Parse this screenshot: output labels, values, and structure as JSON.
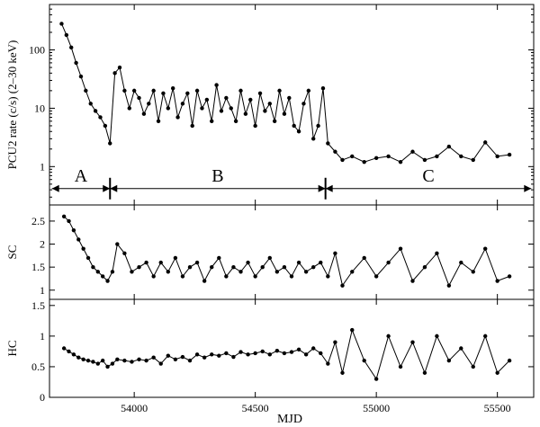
{
  "chart_data": {
    "type": "line",
    "xlabel": "MJD",
    "x_ticks": [
      54000,
      54500,
      55000,
      55500
    ],
    "xlim": [
      3650,
      5650
    ],
    "x_offset_note": "",
    "panels": [
      {
        "id": "rate",
        "ylabel": "PCU2 rate (c/s) (2–30 keV)",
        "scale": "log",
        "ylim": [
          0.22,
          600
        ],
        "y_ticks": [
          1,
          10,
          100
        ],
        "y_tick_labels": [
          "1",
          "10",
          "100"
        ],
        "series": [
          {
            "x": [
              53700,
              53720,
              53740,
              53760,
              53780,
              53800,
              53820,
              53840,
              53860,
              53880,
              53900,
              53920,
              53940,
              53960,
              53980,
              54000,
              54020,
              54040,
              54060,
              54080,
              54100,
              54120,
              54140,
              54160,
              54180,
              54200,
              54220,
              54240,
              54260,
              54280,
              54300,
              54320,
              54340,
              54360,
              54380,
              54400,
              54420,
              54440,
              54460,
              54480,
              54500,
              54520,
              54540,
              54560,
              54580,
              54600,
              54620,
              54640,
              54660,
              54680,
              54700,
              54720,
              54740,
              54760,
              54780,
              54800,
              54830,
              54860,
              54900,
              54950,
              55000,
              55050,
              55100,
              55150,
              55200,
              55250,
              55300,
              55350,
              55400,
              55450,
              55500,
              55550
            ],
            "y": [
              280,
              180,
              110,
              60,
              35,
              20,
              12,
              9,
              7,
              5,
              2.5,
              40,
              50,
              20,
              10,
              20,
              15,
              8,
              12,
              20,
              6,
              18,
              10,
              22,
              7,
              12,
              18,
              5,
              20,
              10,
              14,
              6,
              25,
              9,
              15,
              10,
              6,
              20,
              8,
              14,
              5,
              18,
              9,
              12,
              6,
              20,
              8,
              15,
              5,
              4,
              12,
              20,
              3,
              5,
              22,
              2.5,
              1.8,
              1.3,
              1.5,
              1.2,
              1.4,
              1.5,
              1.2,
              1.8,
              1.3,
              1.5,
              2.2,
              1.5,
              1.3,
              2.6,
              1.5,
              1.6
            ]
          }
        ],
        "annotations": {
          "labels": [
            "A",
            "B",
            "C"
          ],
          "boundaries": [
            53900,
            54790
          ],
          "level": 0.42
        }
      },
      {
        "id": "sc",
        "ylabel": "SC",
        "scale": "linear",
        "ylim": [
          0.8,
          2.85
        ],
        "y_ticks": [
          1,
          1.5,
          2,
          2.5
        ],
        "y_tick_labels": [
          "1",
          "1.5",
          "2",
          "2.5"
        ],
        "series": [
          {
            "x": [
              53710,
              53730,
              53750,
              53770,
              53790,
              53810,
              53830,
              53850,
              53870,
              53890,
              53910,
              53930,
              53960,
              53990,
              54020,
              54050,
              54080,
              54110,
              54140,
              54170,
              54200,
              54230,
              54260,
              54290,
              54320,
              54350,
              54380,
              54410,
              54440,
              54470,
              54500,
              54530,
              54560,
              54590,
              54620,
              54650,
              54680,
              54710,
              54740,
              54770,
              54800,
              54830,
              54860,
              54900,
              54950,
              55000,
              55050,
              55100,
              55150,
              55200,
              55250,
              55300,
              55350,
              55400,
              55450,
              55500,
              55550
            ],
            "y": [
              2.6,
              2.5,
              2.3,
              2.1,
              1.9,
              1.7,
              1.5,
              1.4,
              1.3,
              1.2,
              1.4,
              2.0,
              1.8,
              1.4,
              1.5,
              1.6,
              1.3,
              1.6,
              1.4,
              1.7,
              1.3,
              1.5,
              1.6,
              1.2,
              1.5,
              1.7,
              1.3,
              1.5,
              1.4,
              1.6,
              1.3,
              1.5,
              1.7,
              1.4,
              1.5,
              1.3,
              1.6,
              1.4,
              1.5,
              1.6,
              1.3,
              1.8,
              1.1,
              1.4,
              1.7,
              1.3,
              1.6,
              1.9,
              1.2,
              1.5,
              1.8,
              1.1,
              1.6,
              1.4,
              1.9,
              1.2,
              1.3
            ]
          }
        ]
      },
      {
        "id": "hc",
        "ylabel": "HC",
        "scale": "linear",
        "ylim": [
          0,
          1.6
        ],
        "y_ticks": [
          0,
          0.5,
          1,
          1.5
        ],
        "y_tick_labels": [
          "0",
          "0.5",
          "1",
          "1.5"
        ],
        "series": [
          {
            "x": [
              53710,
              53730,
              53750,
              53770,
              53790,
              53810,
              53830,
              53850,
              53870,
              53890,
              53910,
              53930,
              53960,
              53990,
              54020,
              54050,
              54080,
              54110,
              54140,
              54170,
              54200,
              54230,
              54260,
              54290,
              54320,
              54350,
              54380,
              54410,
              54440,
              54470,
              54500,
              54530,
              54560,
              54590,
              54620,
              54650,
              54680,
              54710,
              54740,
              54770,
              54800,
              54830,
              54860,
              54900,
              54950,
              55000,
              55050,
              55100,
              55150,
              55200,
              55250,
              55300,
              55350,
              55400,
              55450,
              55500,
              55550
            ],
            "y": [
              0.8,
              0.75,
              0.7,
              0.65,
              0.62,
              0.6,
              0.58,
              0.55,
              0.6,
              0.5,
              0.55,
              0.62,
              0.6,
              0.58,
              0.62,
              0.6,
              0.65,
              0.55,
              0.68,
              0.62,
              0.66,
              0.6,
              0.7,
              0.65,
              0.7,
              0.68,
              0.72,
              0.66,
              0.74,
              0.7,
              0.72,
              0.75,
              0.7,
              0.76,
              0.72,
              0.74,
              0.78,
              0.7,
              0.8,
              0.72,
              0.55,
              0.9,
              0.4,
              1.1,
              0.6,
              0.3,
              1.0,
              0.5,
              0.9,
              0.4,
              1.0,
              0.6,
              0.8,
              0.5,
              1.0,
              0.4,
              0.6
            ]
          }
        ]
      }
    ]
  }
}
